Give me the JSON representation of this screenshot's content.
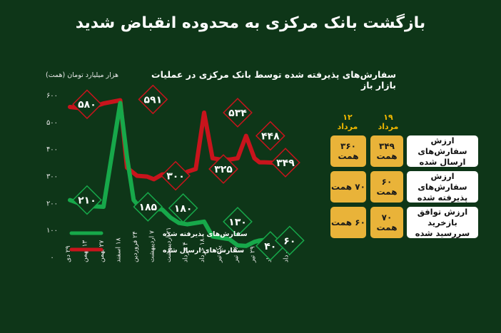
{
  "header": {
    "title": "بازگشت بانک مرکزی به محدوده انقباض شدید"
  },
  "chart_data": {
    "type": "line",
    "title": "سفارش‌های پذیرفته شده توسط بانک مرکزی در عملیات بازار باز",
    "ylabel": "هزار میلیارد تومان (همت)",
    "ylim": [
      0,
      600
    ],
    "yticks": [
      "۰",
      "۱۰۰",
      "۲۰۰",
      "۳۰۰",
      "۴۰۰",
      "۵۰۰",
      "۶۰۰"
    ],
    "categories": [
      "۲۹ دی",
      "۱۳ بهمن",
      "۲۷ بهمن",
      "۱۸ اسفند",
      "۲۴ فروردین",
      "۷ اردیبهشت",
      "۲۱ اردیبهشت",
      "۴ خرداد",
      "۱۸ خرداد",
      "یک تیر",
      "۱۶ تیر",
      "۲۹ تیر",
      "۱۲ مرداد",
      "۱۹ مرداد"
    ],
    "x": [
      0,
      1,
      2,
      3,
      3.4,
      3.8,
      4,
      4.6,
      5,
      5.5,
      6,
      6.5,
      7,
      7.5,
      8,
      8.5,
      9,
      9.5,
      10,
      10.5,
      11,
      11.3,
      11.6,
      12,
      12.5,
      13
    ],
    "series": [
      {
        "name": "سفارش‌های ارسال شده",
        "color": "#c8141c",
        "values": [
          555,
          548,
          568,
          580,
          330,
          310,
          300,
          297,
          287,
          305,
          305,
          290,
          315,
          325,
          534,
          365,
          360,
          360,
          365,
          448,
          365,
          350,
          350,
          349,
          345,
          349
        ]
      },
      {
        "name": "سفارش‌های پذیرفته شده",
        "color": "#17a84a",
        "values": [
          210,
          188,
          185,
          570,
          370,
          210,
          195,
          180,
          178,
          175,
          145,
          125,
          120,
          125,
          130,
          75,
          70,
          65,
          42,
          40,
          55,
          60,
          62,
          60,
          62,
          60
        ]
      }
    ],
    "markers": [
      {
        "series": 0,
        "x": 1.02,
        "y": 565,
        "label": "۵۸۰"
      },
      {
        "series": 0,
        "x": 4.95,
        "y": 583,
        "label": "۵۹۱"
      },
      {
        "series": 0,
        "x": 6.3,
        "y": 300,
        "label": "۳۰۰"
      },
      {
        "series": 0,
        "x": 9.15,
        "y": 325,
        "label": "۳۲۵"
      },
      {
        "series": 0,
        "x": 10.0,
        "y": 534,
        "label": "۵۳۴"
      },
      {
        "series": 0,
        "x": 11.95,
        "y": 448,
        "label": "۴۴۸"
      },
      {
        "series": 0,
        "x": 12.85,
        "y": 349,
        "label": "۳۴۹"
      },
      {
        "series": 1,
        "x": 1.02,
        "y": 210,
        "label": "۲۱۰"
      },
      {
        "series": 1,
        "x": 4.65,
        "y": 185,
        "label": "۱۸۵"
      },
      {
        "series": 1,
        "x": 6.75,
        "y": 180,
        "label": "۱۸۰"
      },
      {
        "series": 1,
        "x": 10.0,
        "y": 130,
        "label": "۱۳۰"
      },
      {
        "series": 1,
        "x": 11.95,
        "y": 40,
        "label": "۴۰"
      },
      {
        "series": 1,
        "x": 13.1,
        "y": 60,
        "label": "۶۰"
      }
    ],
    "legend": {
      "placement": "bottom-left"
    }
  },
  "table": {
    "columns": [
      {
        "line1": "۱۹",
        "line2": "مرداد"
      },
      {
        "line1": "۱۲",
        "line2": "مرداد"
      }
    ],
    "rows": [
      {
        "label": "ارزش سفارش‌های ارسال شده",
        "values": [
          "۳۴۹ همت",
          "۳۶۰ همت"
        ]
      },
      {
        "label": "ارزش سفارش‌های پذیرفته شده",
        "values": [
          "۶۰ همت",
          "۷۰ همت"
        ]
      },
      {
        "label": "ارزش توافق بازخرید سررسید شده",
        "values": [
          "۷۰ همت",
          "۶۰ همت"
        ]
      }
    ]
  }
}
